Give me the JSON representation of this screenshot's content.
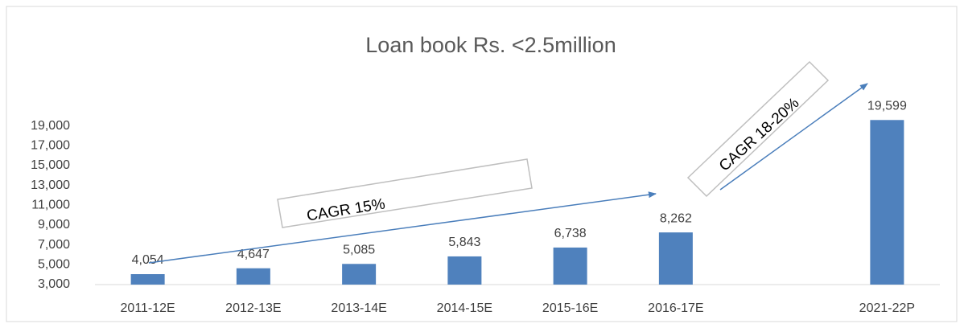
{
  "chart_data": {
    "type": "bar",
    "title": "Loan book Rs. <2.5million",
    "categories": [
      "2011-12E",
      "2012-13E",
      "2013-14E",
      "2014-15E",
      "2015-16E",
      "2016-17E",
      null,
      "2021-22P"
    ],
    "values": [
      4054,
      4647,
      5085,
      5843,
      6738,
      8262,
      null,
      19599
    ],
    "value_labels": [
      "4,054",
      "4,647",
      "5,085",
      "5,843",
      "6,738",
      "8,262",
      null,
      "19,599"
    ],
    "color": "#4f81bd",
    "ylim": [
      3000,
      21000
    ],
    "yticks": [
      {
        "value": 3000,
        "label": "3,000"
      },
      {
        "value": 5000,
        "label": "5,000"
      },
      {
        "value": 7000,
        "label": "7,000"
      },
      {
        "value": 9000,
        "label": "9,000"
      },
      {
        "value": 11000,
        "label": "11,000"
      },
      {
        "value": 13000,
        "label": "13,000"
      },
      {
        "value": 15000,
        "label": "15,000"
      },
      {
        "value": 17000,
        "label": "17,000"
      },
      {
        "value": 19000,
        "label": "19,000"
      }
    ],
    "annotations": [
      "CAGR 15%",
      "CAGR 18-20%"
    ]
  }
}
